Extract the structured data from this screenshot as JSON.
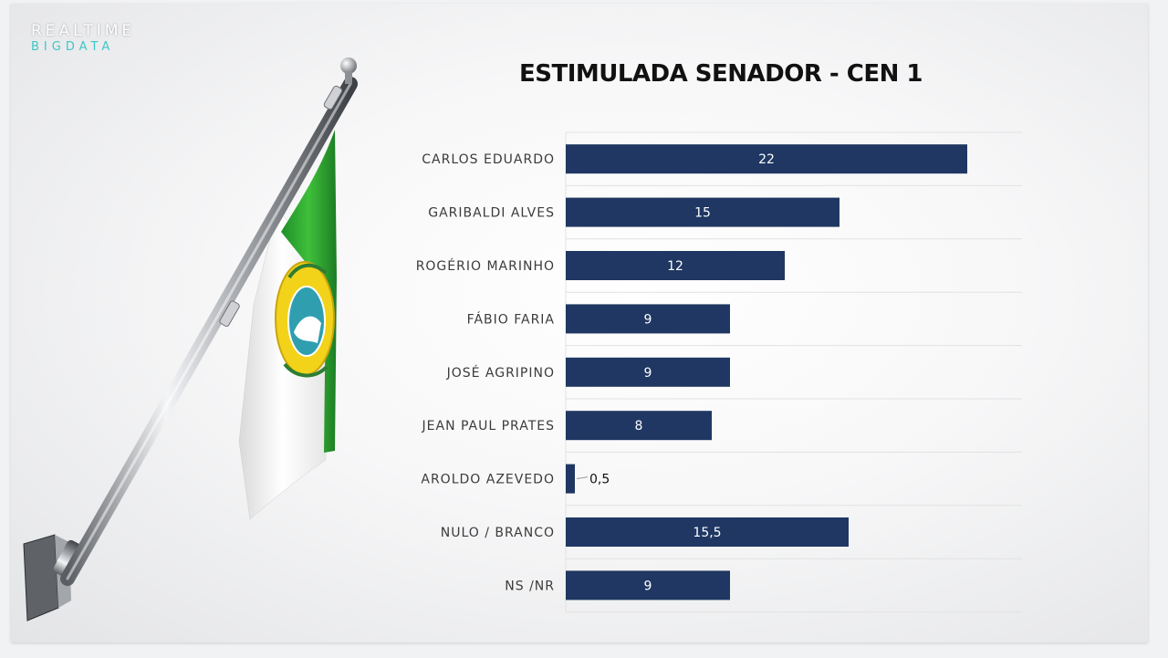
{
  "brand": {
    "line1": "REALTIME",
    "line2": "BIGDATA"
  },
  "colors": {
    "bar": "#1f3762",
    "grid": "#e2e2e2",
    "accent": "#3fc6c8"
  },
  "chart_data": {
    "type": "bar",
    "orientation": "horizontal",
    "title": "ESTIMULADA SENADOR - CEN 1",
    "categories": [
      "CARLOS EDUARDO",
      "GARIBALDI ALVES",
      "ROGÉRIO MARINHO",
      "FÁBIO FARIA",
      "JOSÉ AGRIPINO",
      "JEAN PAUL PRATES",
      "AROLDO AZEVEDO",
      "NULO / BRANCO",
      "NS /NR"
    ],
    "values": [
      22,
      15,
      12,
      9,
      9,
      8,
      0.5,
      15.5,
      9
    ],
    "value_labels": [
      "22",
      "15",
      "12",
      "9",
      "9",
      "8",
      "0,5",
      "15,5",
      "9"
    ],
    "xlim": [
      0,
      25
    ],
    "grid": true,
    "legend": "none"
  }
}
